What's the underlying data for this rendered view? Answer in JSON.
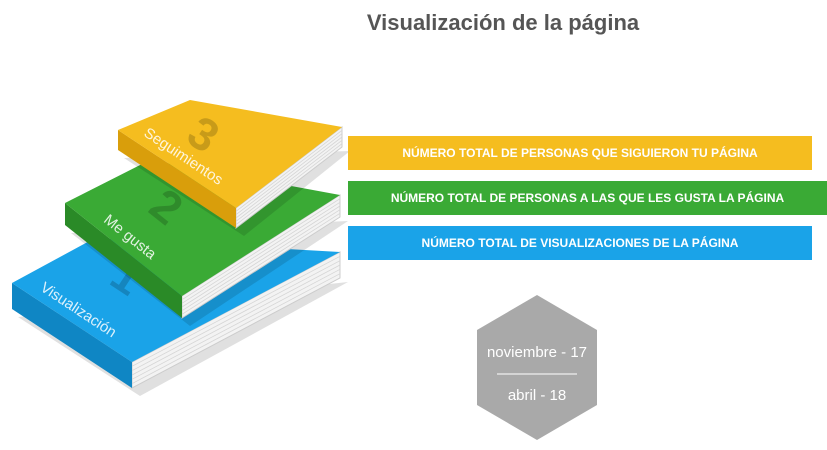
{
  "title": "Visualización de la página",
  "books": [
    {
      "number": 1,
      "label": "Visualización",
      "color": "#1aa3e8",
      "dark": "#0f86c4"
    },
    {
      "number": 2,
      "label": "Me gusta",
      "color": "#3aaa35",
      "dark": "#2a8a27"
    },
    {
      "number": 3,
      "label": "Seguimientos",
      "color": "#f5bd1f",
      "dark": "#d99e0b"
    }
  ],
  "banners": [
    {
      "text": "NÚMERO TOTAL DE PERSONAS QUE SIGUIERON TU PÁGINA",
      "color": "#f5bd1f"
    },
    {
      "text": "NÚMERO TOTAL DE PERSONAS A LAS QUE LES GUSTA LA PÁGINA",
      "color": "#3aaa35"
    },
    {
      "text": "NÚMERO TOTAL DE VISUALIZACIONES DE LA PÁGINA",
      "color": "#1aa3e8"
    }
  ],
  "period": {
    "from": "noviembre - 17",
    "to": "abril - 18"
  }
}
